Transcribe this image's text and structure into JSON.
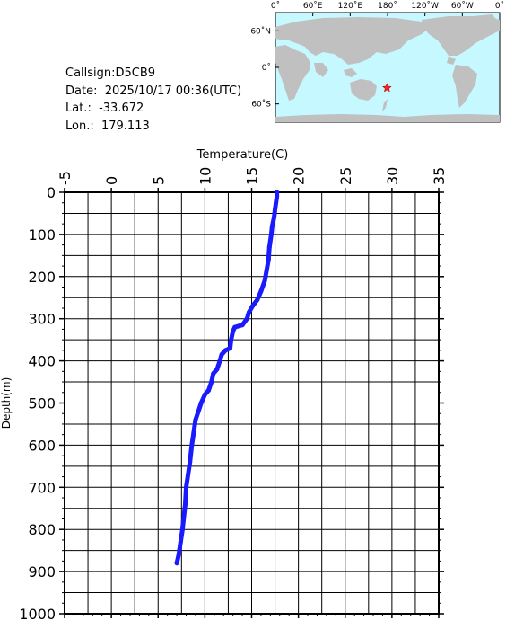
{
  "info": {
    "callsign": "Callsign:D5CB9",
    "date": "Date:  2025/10/17 00:36(UTC)",
    "lat": "Lat.:  -33.672",
    "lon": "Lon.:  179.113"
  },
  "map": {
    "lon_labels": [
      "0˚",
      "60˚E",
      "120˚E",
      "180˚",
      "120˚W",
      "60˚W",
      "0˚"
    ],
    "lat_labels": [
      "60˚N",
      "0˚",
      "60˚S"
    ],
    "ocean_color": "#c6f8ff",
    "land_color": "#c0c0c0",
    "marker": {
      "lat": -33.672,
      "lon": 179.113,
      "color": "#ff2020",
      "symbol": "star"
    }
  },
  "chart_data": {
    "type": "line",
    "title": "",
    "xlabel": "Temperature(C)",
    "ylabel": "Depth(m)",
    "xlim": [
      -5,
      35
    ],
    "ylim": [
      0,
      1000
    ],
    "y_inverted": true,
    "x_axis_position": "top",
    "x_ticks": [
      "-5",
      "0",
      "5",
      "10",
      "15",
      "20",
      "25",
      "30",
      "35"
    ],
    "y_ticks": [
      "0",
      "100",
      "200",
      "300",
      "400",
      "500",
      "600",
      "700",
      "800",
      "900",
      "1000"
    ],
    "grid": true,
    "series": [
      {
        "color": "#1a1aff",
        "points": [
          [
            17.7,
            0
          ],
          [
            17.7,
            10
          ],
          [
            17.6,
            25
          ],
          [
            17.5,
            40
          ],
          [
            17.4,
            60
          ],
          [
            17.2,
            80
          ],
          [
            17.1,
            100
          ],
          [
            16.9,
            130
          ],
          [
            16.8,
            160
          ],
          [
            16.6,
            185
          ],
          [
            16.4,
            210
          ],
          [
            16.0,
            235
          ],
          [
            15.6,
            255
          ],
          [
            15.1,
            270
          ],
          [
            14.7,
            285
          ],
          [
            14.5,
            300
          ],
          [
            14.0,
            315
          ],
          [
            13.2,
            320
          ],
          [
            13.0,
            330
          ],
          [
            12.8,
            350
          ],
          [
            12.7,
            370
          ],
          [
            12.2,
            375
          ],
          [
            11.8,
            385
          ],
          [
            11.6,
            400
          ],
          [
            11.3,
            420
          ],
          [
            10.9,
            430
          ],
          [
            10.7,
            450
          ],
          [
            10.4,
            470
          ],
          [
            10.0,
            480
          ],
          [
            9.6,
            500
          ],
          [
            9.3,
            520
          ],
          [
            9.0,
            540
          ],
          [
            8.8,
            570
          ],
          [
            8.6,
            600
          ],
          [
            8.4,
            640
          ],
          [
            8.2,
            670
          ],
          [
            8.0,
            700
          ],
          [
            7.9,
            740
          ],
          [
            7.7,
            780
          ],
          [
            7.6,
            800
          ],
          [
            7.4,
            830
          ],
          [
            7.2,
            860
          ],
          [
            7.0,
            880
          ]
        ]
      }
    ]
  }
}
